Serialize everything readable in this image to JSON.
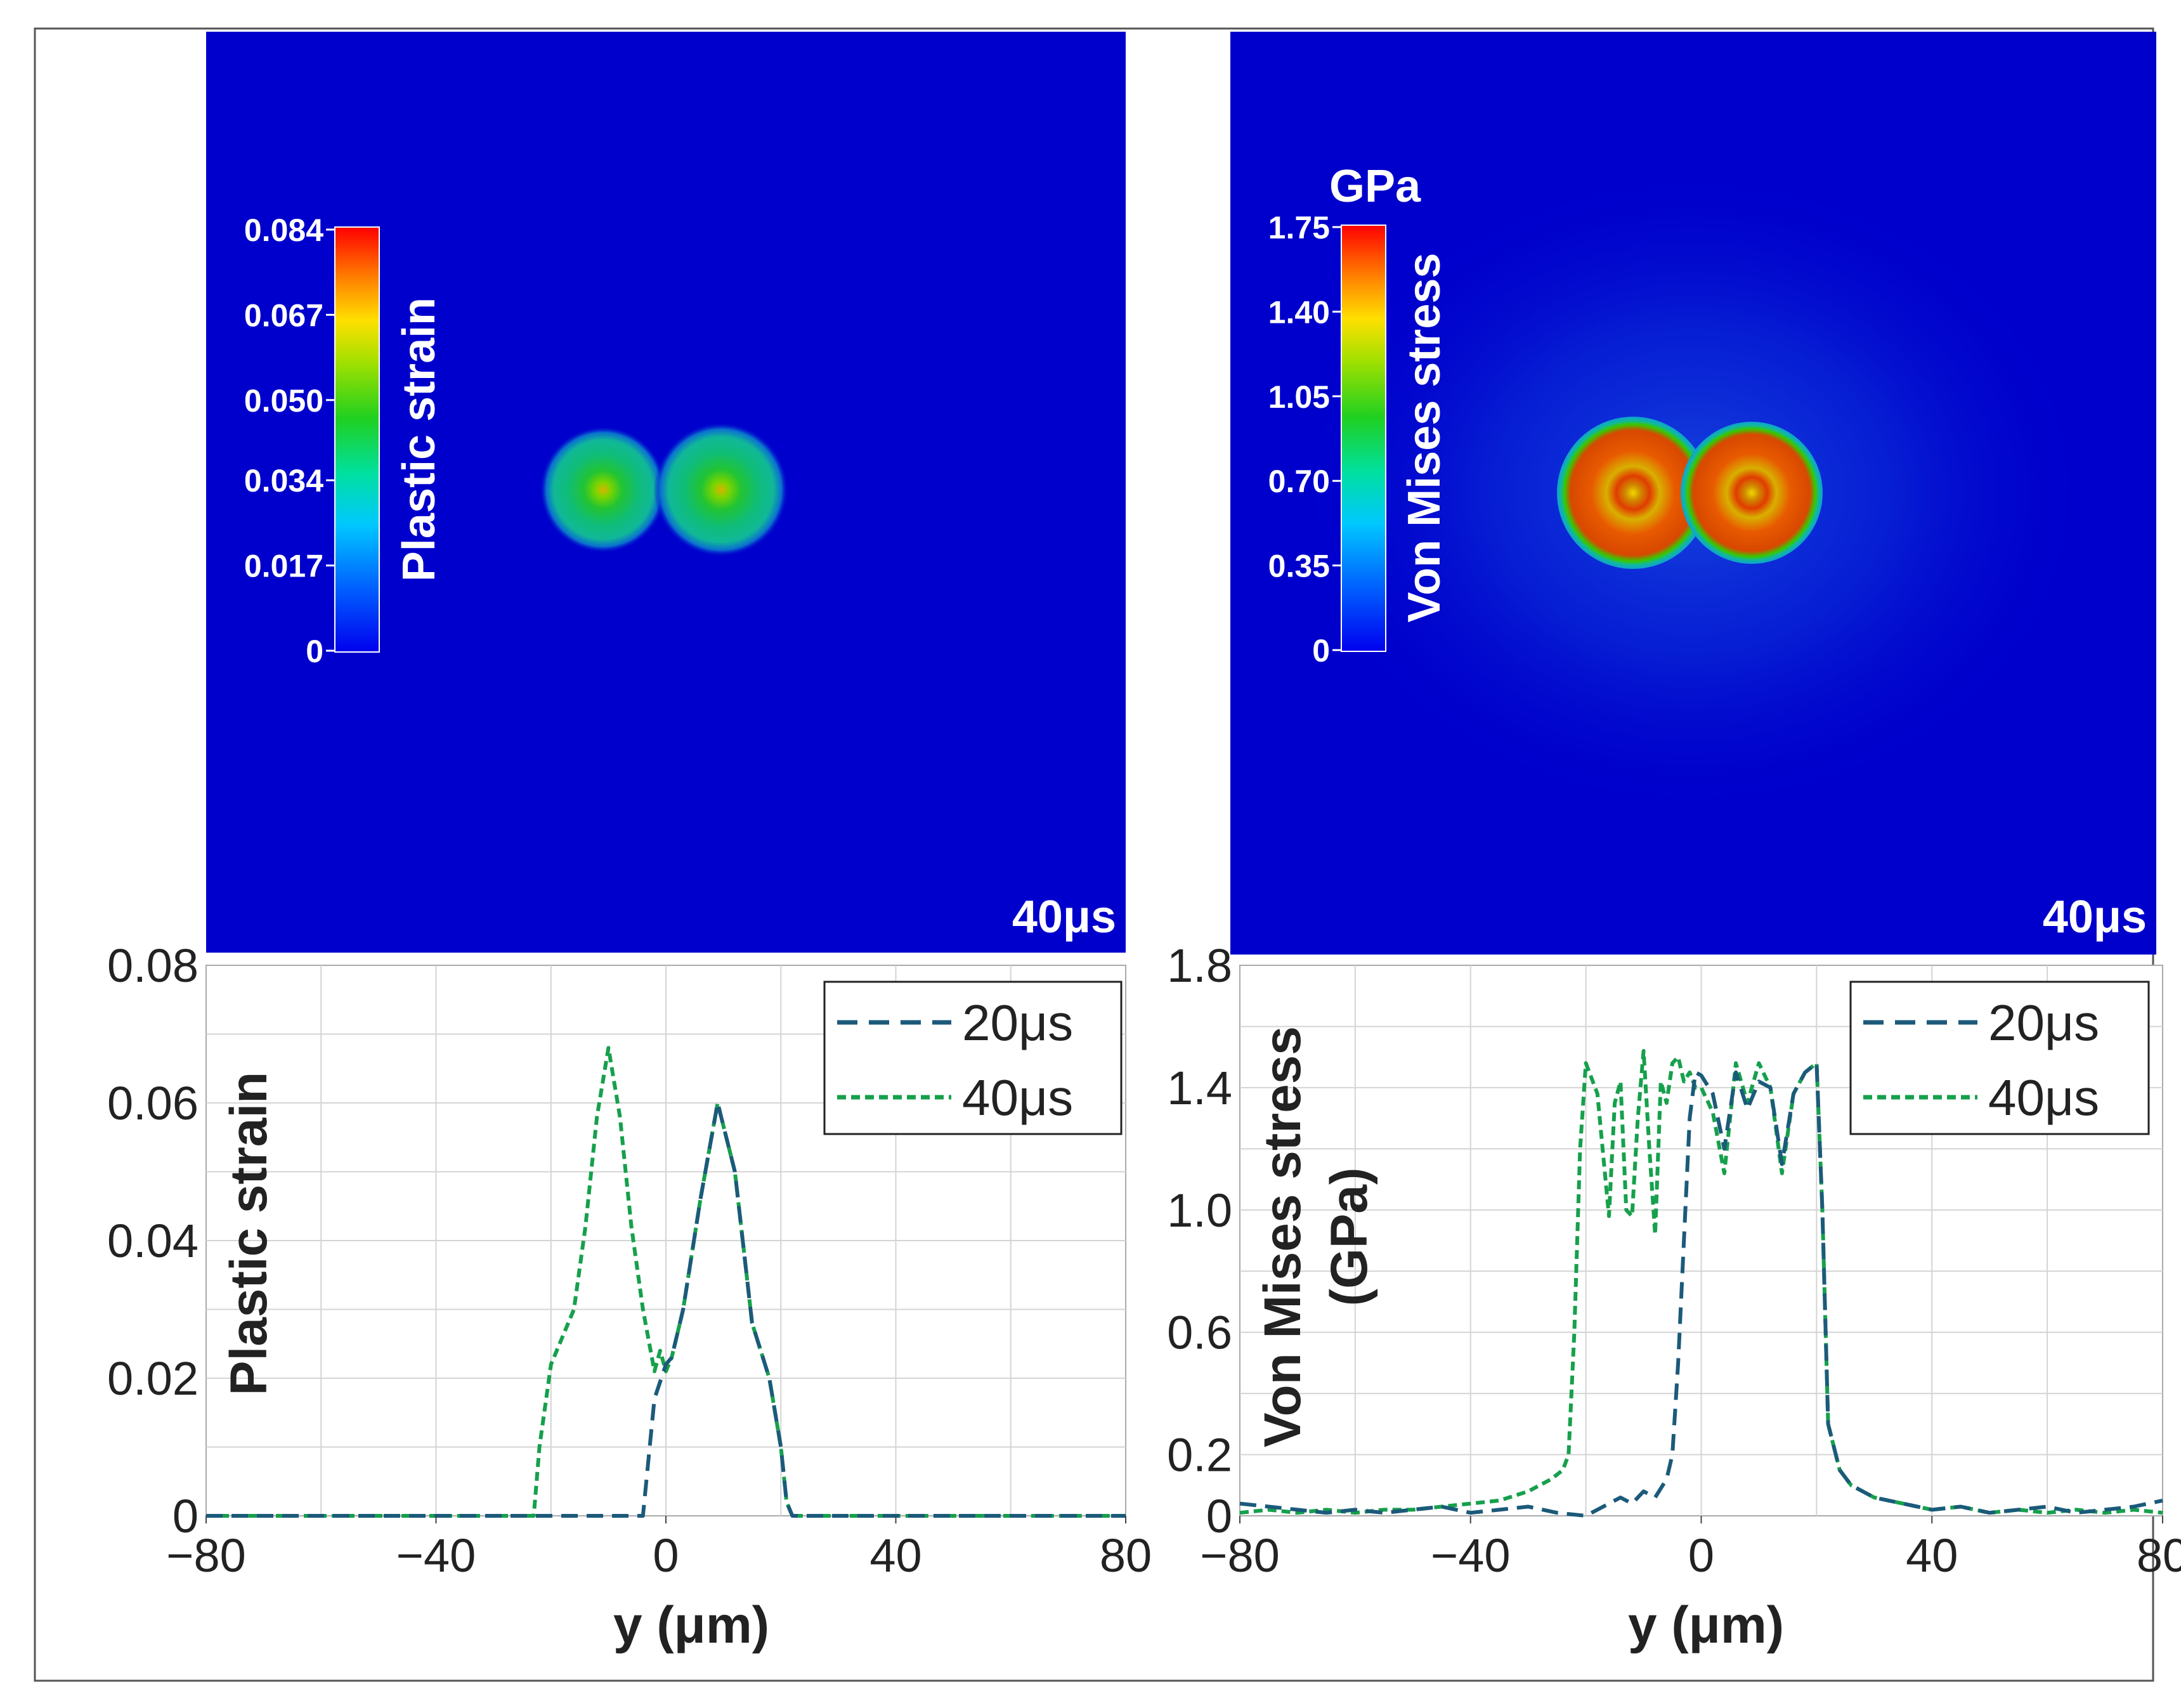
{
  "panels": {
    "strain_map": {
      "time_label": "40μs",
      "colorbar": {
        "title": "Plastic strain",
        "unit": "",
        "ticks": [
          "0.084",
          "0.067",
          "0.050",
          "0.034",
          "0.017",
          "0"
        ],
        "max": 0.084
      }
    },
    "stress_map": {
      "time_label": "40μs",
      "colorbar": {
        "title": "Von Mises stress",
        "unit": "GPa",
        "ticks": [
          "1.75",
          "1.40",
          "1.05",
          "0.70",
          "0.35",
          "0"
        ],
        "max": 1.75
      }
    }
  },
  "colors": {
    "map_background": "#0000CC",
    "series_20us": "#1B5A7A",
    "series_40us": "#16A04C"
  },
  "chart_data": [
    {
      "type": "line",
      "xlabel": "y (μm)",
      "ylabel": "Plastic strain",
      "xlim": [
        -80,
        80
      ],
      "ylim": [
        0,
        0.08
      ],
      "xticks": [
        "−80",
        "−40",
        "0",
        "40",
        "80"
      ],
      "yticks": [
        "0",
        "0.02",
        "0.04",
        "0.06",
        "0.08"
      ],
      "legend_position": "top-right",
      "grid": true,
      "series": [
        {
          "name": "20μs",
          "x": [
            -80,
            -4,
            -2,
            0,
            1,
            3,
            6,
            9,
            12,
            15,
            18,
            20,
            21,
            22,
            80
          ],
          "y": [
            0,
            0,
            0.017,
            0.022,
            0.023,
            0.03,
            0.046,
            0.06,
            0.05,
            0.028,
            0.02,
            0.01,
            0.002,
            0,
            0
          ]
        },
        {
          "name": "40μs",
          "x": [
            -80,
            -23,
            -22,
            -20,
            -18,
            -16,
            -14,
            -12,
            -10,
            -8,
            -6,
            -4,
            -2,
            -1,
            0,
            1,
            3,
            6,
            9,
            12,
            15,
            18,
            20,
            21,
            22,
            80
          ],
          "y": [
            0,
            0,
            0.01,
            0.022,
            0.026,
            0.03,
            0.042,
            0.058,
            0.068,
            0.058,
            0.042,
            0.03,
            0.021,
            0.024,
            0.021,
            0.023,
            0.03,
            0.046,
            0.06,
            0.05,
            0.028,
            0.02,
            0.01,
            0.002,
            0,
            0
          ]
        }
      ]
    },
    {
      "type": "line",
      "xlabel": "y (μm)",
      "ylabel": "Von Mises stress (GPa)",
      "xlim": [
        -80,
        80
      ],
      "ylim": [
        0,
        1.8
      ],
      "xticks": [
        "−80",
        "−40",
        "0",
        "40",
        "80"
      ],
      "yticks": [
        "0",
        "0.2",
        "0.6",
        "1.0",
        "1.4",
        "1.8"
      ],
      "legend_position": "top-right",
      "grid": true,
      "series": [
        {
          "name": "20μs",
          "x": [
            -80,
            -75,
            -70,
            -65,
            -60,
            -55,
            -50,
            -45,
            -40,
            -35,
            -30,
            -25,
            -20,
            -16,
            -14,
            -12,
            -10,
            -8,
            -6,
            -5,
            -4,
            -3,
            -2,
            -1,
            0,
            2,
            4,
            6,
            8,
            10,
            12,
            14,
            16,
            18,
            20,
            21,
            22,
            24,
            26,
            30,
            35,
            40,
            45,
            50,
            55,
            60,
            65,
            70,
            75,
            80
          ],
          "y": [
            0.04,
            0.03,
            0.02,
            0.01,
            0.02,
            0.01,
            0.02,
            0.03,
            0.01,
            0.02,
            0.03,
            0.01,
            0.0,
            0.04,
            0.06,
            0.04,
            0.08,
            0.06,
            0.12,
            0.2,
            0.5,
            0.9,
            1.3,
            1.45,
            1.44,
            1.38,
            1.2,
            1.45,
            1.33,
            1.42,
            1.4,
            1.15,
            1.38,
            1.45,
            1.48,
            1.0,
            0.3,
            0.15,
            0.1,
            0.06,
            0.04,
            0.02,
            0.03,
            0.01,
            0.02,
            0.03,
            0.01,
            0.02,
            0.03,
            0.05
          ]
        },
        {
          "name": "40μs",
          "x": [
            -80,
            -75,
            -70,
            -65,
            -60,
            -55,
            -50,
            -45,
            -40,
            -35,
            -30,
            -26,
            -24,
            -23,
            -22,
            -21,
            -20,
            -18,
            -16,
            -15,
            -14,
            -13,
            -12,
            -11,
            -10,
            -9,
            -8,
            -7,
            -6,
            -5,
            -4,
            -3,
            -2,
            -1,
            0,
            2,
            4,
            6,
            8,
            10,
            12,
            14,
            16,
            18,
            20,
            21,
            22,
            24,
            26,
            30,
            35,
            40,
            45,
            50,
            55,
            60,
            65,
            70,
            75,
            80
          ],
          "y": [
            0.01,
            0.02,
            0.01,
            0.02,
            0.01,
            0.02,
            0.02,
            0.03,
            0.04,
            0.05,
            0.08,
            0.12,
            0.15,
            0.2,
            0.6,
            1.2,
            1.48,
            1.38,
            0.98,
            1.35,
            1.42,
            1.0,
            0.98,
            1.3,
            1.52,
            1.2,
            0.92,
            1.42,
            1.35,
            1.48,
            1.5,
            1.42,
            1.45,
            1.4,
            1.4,
            1.32,
            1.12,
            1.48,
            1.35,
            1.48,
            1.4,
            1.12,
            1.38,
            1.45,
            1.48,
            1.0,
            0.3,
            0.15,
            0.1,
            0.06,
            0.04,
            0.02,
            0.03,
            0.01,
            0.02,
            0.01,
            0.02,
            0.01,
            0.02,
            0.01
          ]
        }
      ]
    }
  ]
}
